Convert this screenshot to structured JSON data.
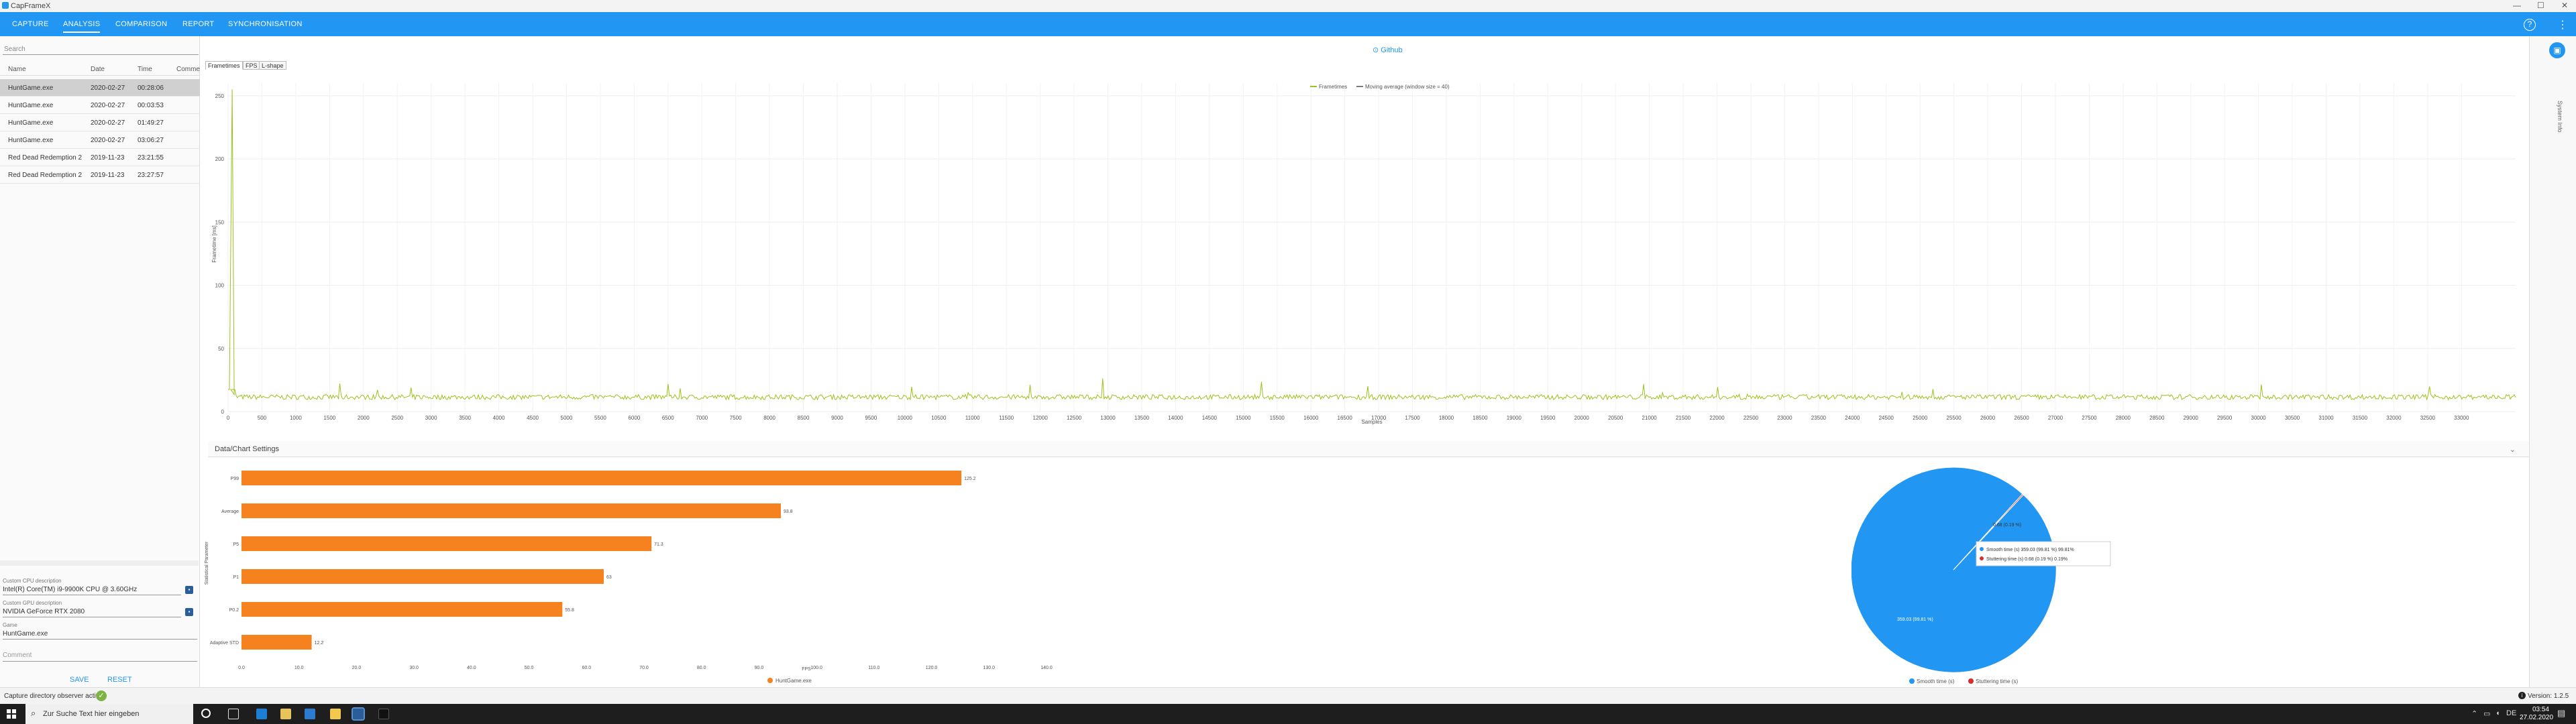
{
  "window": {
    "title": "CapFrameX",
    "minimize": "—",
    "maximize": "☐",
    "close": "✕"
  },
  "nav": {
    "tabs": [
      "CAPTURE",
      "ANALYSIS",
      "COMPARISON",
      "REPORT",
      "SYNCHRONISATION"
    ],
    "active": "ANALYSIS",
    "help": "?",
    "more": "⋮"
  },
  "left": {
    "search_placeholder": "Search",
    "columns": [
      "Name",
      "Date",
      "Time",
      "Comme"
    ],
    "rows": [
      {
        "name": "HuntGame.exe",
        "date": "2020-02-27",
        "time": "00:28:06"
      },
      {
        "name": "HuntGame.exe",
        "date": "2020-02-27",
        "time": "00:03:53"
      },
      {
        "name": "HuntGame.exe",
        "date": "2020-02-27",
        "time": "01:49:27"
      },
      {
        "name": "HuntGame.exe",
        "date": "2020-02-27",
        "time": "03:06:27"
      },
      {
        "name": "Red Dead Redemption 2",
        "date": "2019-11-23",
        "time": "23:21:55"
      },
      {
        "name": "Red Dead Redemption 2",
        "date": "2019-11-23",
        "time": "23:27:57"
      }
    ],
    "cpu_label": "Custom CPU description",
    "cpu_value": "Intel(R) Core(TM) i9-9900K CPU @ 3.60GHz",
    "gpu_label": "Custom GPU description",
    "gpu_value": "NVIDIA GeForce RTX 2080",
    "game_label": "Game",
    "game_value": "HuntGame.exe",
    "comment_placeholder": "Comment",
    "save": "SAVE",
    "reset": "RESET"
  },
  "main": {
    "github": "Github",
    "chart_tabs": [
      "Frametimes",
      "FPS",
      "L-shape"
    ],
    "settings_title": "Data/Chart Settings",
    "chevron": "⌄"
  },
  "sidebar": {
    "label": "System Info"
  },
  "status": {
    "observer": "Capture directory observer active",
    "check": "✓",
    "version": "Version: 1.2.5"
  },
  "taskbar": {
    "search": "Zur Suche Text hier eingeben",
    "time": "03:54",
    "date": "27.02.2020",
    "lang": "DE"
  },
  "chart_data": [
    {
      "type": "line",
      "xlabel": "Samples",
      "ylabel": "Frametime [ms]",
      "xlim": [
        0,
        33800
      ],
      "ylim": [
        0,
        260
      ],
      "x_ticks": [
        0,
        500,
        1000,
        1500,
        2000,
        2500,
        3000,
        3500,
        4000,
        4500,
        5000,
        5500,
        6000,
        6500,
        7000,
        7500,
        8000,
        8500,
        9000,
        9500,
        10000,
        10500,
        11000,
        11500,
        12000,
        12500,
        13000,
        13500,
        14000,
        14500,
        15000,
        15500,
        16000,
        16500,
        17000,
        17500,
        18000,
        18500,
        19000,
        19500,
        20000,
        20500,
        21000,
        21500,
        22000,
        22500,
        23000,
        23500,
        24000,
        24500,
        25000,
        25500,
        26000,
        26500,
        27000,
        27500,
        28000,
        28500,
        29000,
        29500,
        30000,
        30500,
        31000,
        31500,
        32000,
        32500,
        33000
      ],
      "y_ticks": [
        0,
        50,
        100,
        150,
        200,
        250
      ],
      "legend": "top-center",
      "grid": true,
      "series": [
        {
          "name": "Frametimes",
          "color": "#9bc21a",
          "mean": 11.5,
          "spike": {
            "x": 60,
            "y": 255
          }
        },
        {
          "name": "Moving average (window size = 40)",
          "color": "#7a7a7a"
        }
      ]
    },
    {
      "type": "bar",
      "orientation": "horizontal",
      "ylabel": "Statistical Parameter",
      "xlabel": "FPS",
      "categories": [
        "P99",
        "Average",
        "P5",
        "P1",
        "P0.2",
        "Adaptive STD"
      ],
      "values": [
        125.2,
        93.8,
        71.3,
        63.0,
        55.8,
        12.2
      ],
      "xlim": [
        0,
        140
      ],
      "x_ticks": [
        0.0,
        10.0,
        20.0,
        30.0,
        40.0,
        50.0,
        60.0,
        70.0,
        80.0,
        90.0,
        100.0,
        110.0,
        120.0,
        130.0,
        140.0
      ],
      "series": [
        {
          "name": "HuntGame.exe",
          "color": "#f5821f"
        }
      ],
      "legend": "bottom"
    },
    {
      "type": "pie",
      "labels": [
        "Smooth time (s)",
        "Stuttering time (s)"
      ],
      "values": [
        359.03,
        0.68
      ],
      "percents": [
        "99.81 %",
        "0.19%"
      ],
      "slice_labels": [
        "359.03 (99.81 %)",
        "0.68 (0.19 %)"
      ],
      "colors": [
        "#2196f3",
        "#d32f2f"
      ],
      "tooltip": [
        "Smooth time (s)  359.03 (99.81 %)  99.81%",
        "Stuttering time (s)  0.68 (0.19 %)  0.19%"
      ],
      "legend": "bottom"
    }
  ]
}
